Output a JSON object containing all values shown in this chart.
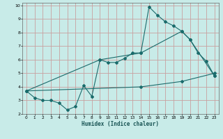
{
  "xlabel": "Humidex (Indice chaleur)",
  "xlim": [
    -0.5,
    23.5
  ],
  "ylim": [
    2,
    10.2
  ],
  "xticks": [
    0,
    1,
    2,
    3,
    4,
    5,
    6,
    7,
    8,
    9,
    10,
    11,
    12,
    13,
    14,
    15,
    16,
    17,
    18,
    19,
    20,
    21,
    22,
    23
  ],
  "yticks": [
    2,
    3,
    4,
    5,
    6,
    7,
    8,
    9,
    10
  ],
  "bg_color": "#c8ebe8",
  "grid_color": "#c8a0a0",
  "line_color": "#1a6b6b",
  "line1_x": [
    0,
    1,
    2,
    3,
    4,
    5,
    6,
    7,
    8,
    9,
    10,
    11,
    12,
    13,
    14,
    15,
    16,
    17,
    18,
    19,
    20,
    21,
    22,
    23
  ],
  "line1_y": [
    3.7,
    3.2,
    3.0,
    3.0,
    2.8,
    2.3,
    2.55,
    4.1,
    3.3,
    6.0,
    5.8,
    5.8,
    6.1,
    6.5,
    6.5,
    9.9,
    9.3,
    8.8,
    8.5,
    8.1,
    7.5,
    6.5,
    5.9,
    4.8
  ],
  "line2_x": [
    0,
    9,
    14,
    19,
    20,
    23
  ],
  "line2_y": [
    3.7,
    6.0,
    6.5,
    8.1,
    7.5,
    4.8
  ],
  "line3_x": [
    0,
    14,
    19,
    23
  ],
  "line3_y": [
    3.7,
    4.0,
    4.4,
    5.0
  ]
}
